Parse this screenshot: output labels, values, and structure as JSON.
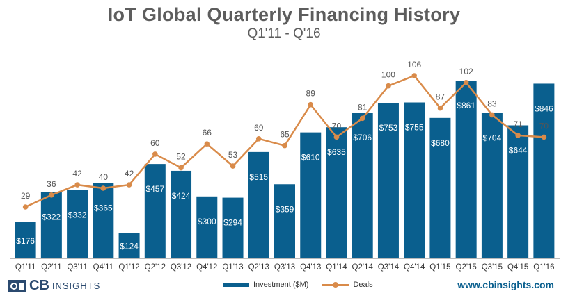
{
  "chart_data": {
    "type": "bar+line",
    "title": "IoT Global Quarterly Financing History",
    "subtitle": "Q1'11 - Q'16",
    "categories": [
      "Q1'11",
      "Q2'11",
      "Q3'11",
      "Q4'11",
      "Q1'12",
      "Q2'12",
      "Q3'12",
      "Q4'12",
      "Q1'13",
      "Q2'13",
      "Q3'13",
      "Q4'13",
      "Q1'14",
      "Q2'14",
      "Q3'14",
      "Q4'14",
      "Q1'15",
      "Q2'15",
      "Q3'15",
      "Q4'15",
      "Q1'16"
    ],
    "series": [
      {
        "name": "Investment ($M)",
        "type": "bar",
        "values": [
          176,
          322,
          332,
          365,
          124,
          457,
          424,
          300,
          294,
          515,
          359,
          610,
          635,
          706,
          753,
          755,
          680,
          861,
          704,
          644,
          846
        ],
        "labels": [
          "$176",
          "$322",
          "$332",
          "$365",
          "$124",
          "$457",
          "$424",
          "$300",
          "$294",
          "$515",
          "$359",
          "$610",
          "$635",
          "$706",
          "$753",
          "$755",
          "$680",
          "$861",
          "$704",
          "$644",
          "$846"
        ],
        "color": "#0a5f8e"
      },
      {
        "name": "Deals",
        "type": "line",
        "values": [
          29,
          36,
          42,
          40,
          42,
          60,
          52,
          66,
          53,
          69,
          65,
          89,
          70,
          81,
          100,
          106,
          87,
          102,
          83,
          71,
          70
        ],
        "color": "#d98b4a"
      }
    ],
    "ylim_investment": [
      0,
      900
    ],
    "ylim_deals": [
      0,
      120
    ]
  },
  "footer": {
    "logo_cb": "CB",
    "logo_insights": "INSIGHTS",
    "website": "www.cbinsights.com"
  },
  "colors": {
    "bar": "#0a5f8e",
    "line": "#d98b4a",
    "title": "#5d5d5d"
  }
}
